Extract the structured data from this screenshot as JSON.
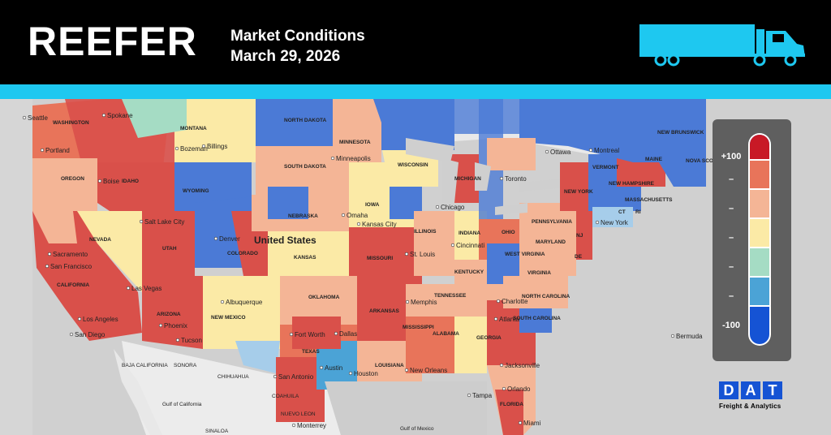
{
  "header": {
    "brand": "REEFER",
    "subtitle_line1": "Market Conditions",
    "subtitle_line2": "March 29, 2026",
    "truck_icon": "truck-icon"
  },
  "colors": {
    "header_bg": "#000000",
    "accent": "#1ec8f0",
    "strong_plus": "#c81926",
    "plus": "#e8745a",
    "mild_plus": "#f4b596",
    "neutral": "#fbeaa6",
    "mild_minus": "#a5dcc4",
    "minus": "#4ba3d6",
    "strong_minus": "#1553d4"
  },
  "legend": {
    "top_label": "+100",
    "bottom_label": "-100",
    "tick_marks": [
      "–",
      "–",
      "–",
      "–",
      "–"
    ]
  },
  "map_labels": {
    "country": "United States",
    "states": [
      "WASHINGTON",
      "MONTANA",
      "NORTH DAKOTA",
      "MINNESOTA",
      "OREGON",
      "IDAHO",
      "SOUTH DAKOTA",
      "WISCONSIN",
      "MICHIGAN",
      "WYOMING",
      "NEVADA",
      "UTAH",
      "COLORADO",
      "NEBRASKA",
      "IOWA",
      "ILLINOIS",
      "INDIANA",
      "OHIO",
      "PENNSYLVANIA",
      "NEW YORK",
      "VERMONT",
      "NEW HAMPSHIRE",
      "MAINE",
      "MASSACHUSETTS",
      "CT",
      "RI",
      "NJ",
      "DE",
      "MARYLAND",
      "WEST VIRGINIA",
      "VIRGINIA",
      "KENTUCKY",
      "TENNESSEE",
      "NORTH CAROLINA",
      "SOUTH CAROLINA",
      "GEORGIA",
      "ALABAMA",
      "MISSISSIPPI",
      "LOUISIANA",
      "ARKANSAS",
      "MISSOURI",
      "KANSAS",
      "OKLAHOMA",
      "TEXAS",
      "NEW MEXICO",
      "ARIZONA",
      "CALIFORNIA",
      "FLORIDA",
      "NEW BRUNSWICK",
      "NOVA SCOTIA"
    ],
    "cities": [
      "Seattle",
      "Spokane",
      "Portland",
      "Boise",
      "Bozeman",
      "Billings",
      "Minneapolis",
      "Sacramento",
      "San Francisco",
      "Salt Lake City",
      "Denver",
      "Omaha",
      "Chicago",
      "Toronto",
      "Ottawa",
      "Montreal",
      "Kansas City",
      "St. Louis",
      "Cincinnati",
      "New York",
      "Las Vegas",
      "Albuquerque",
      "Memphis",
      "Charlotte",
      "Los Angeles",
      "Phoenix",
      "San Diego",
      "Tucson",
      "Fort Worth",
      "Dallas",
      "Atlanta",
      "Austin",
      "Houston",
      "San Antonio",
      "New Orleans",
      "Jacksonville",
      "Orlando",
      "Tampa",
      "Miami",
      "Monterrey",
      "Bermuda"
    ],
    "mexico": [
      "BAJA CALIFORNIA",
      "SONORA",
      "CHIHUAHUA",
      "COAHUILA",
      "NUEVO LEON",
      "SINALOA",
      "Gulf of California",
      "Gulf of Mexico"
    ]
  },
  "logo": {
    "letters": [
      "D",
      "A",
      "T"
    ],
    "tagline": "Freight & Analytics"
  }
}
